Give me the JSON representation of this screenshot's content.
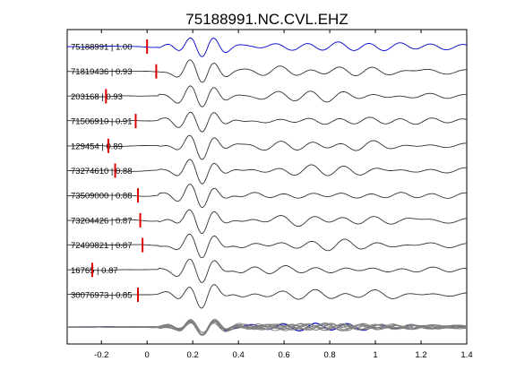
{
  "chart_data": {
    "type": "line",
    "title": "75188991.NC.CVL.EHZ",
    "xlabel": "",
    "ylabel": "",
    "xlim": [
      -0.35,
      1.4
    ],
    "x_ticks": [
      "-0.2",
      "0",
      "0.2",
      "0.4",
      "0.6",
      "0.8",
      "1",
      "1.2",
      "1.4"
    ],
    "x_tick_values": [
      -0.2,
      0,
      0.2,
      0.4,
      0.6,
      0.8,
      1.0,
      1.2,
      1.4
    ],
    "grid": false,
    "colors": {
      "reference": "#0000cc",
      "trace": "#333333",
      "stack": "#808080",
      "pick": "#dd0000"
    },
    "series": [
      {
        "label": "75188991 | 1.00",
        "correlation": 1.0,
        "pick_time": 0.0,
        "reference": true
      },
      {
        "label": "71819436 | 0.93",
        "correlation": 0.93,
        "pick_time": 0.04
      },
      {
        "label": "203168 | 0.93",
        "correlation": 0.93,
        "pick_time": -0.18
      },
      {
        "label": "71506910 | 0.91",
        "correlation": 0.91,
        "pick_time": -0.05
      },
      {
        "label": "129454 | 0.89",
        "correlation": 0.89,
        "pick_time": -0.17
      },
      {
        "label": "73274610 | 0.88",
        "correlation": 0.88,
        "pick_time": -0.14
      },
      {
        "label": "73509000 | 0.88",
        "correlation": 0.88,
        "pick_time": -0.04
      },
      {
        "label": "73204426 | 0.87",
        "correlation": 0.87,
        "pick_time": -0.03
      },
      {
        "label": "72499821 | 0.87",
        "correlation": 0.87,
        "pick_time": -0.02
      },
      {
        "label": "16765 | 0.87",
        "correlation": 0.87,
        "pick_time": -0.24
      },
      {
        "label": "30076973 | 0.85",
        "correlation": 0.85,
        "pick_time": -0.04
      }
    ]
  }
}
